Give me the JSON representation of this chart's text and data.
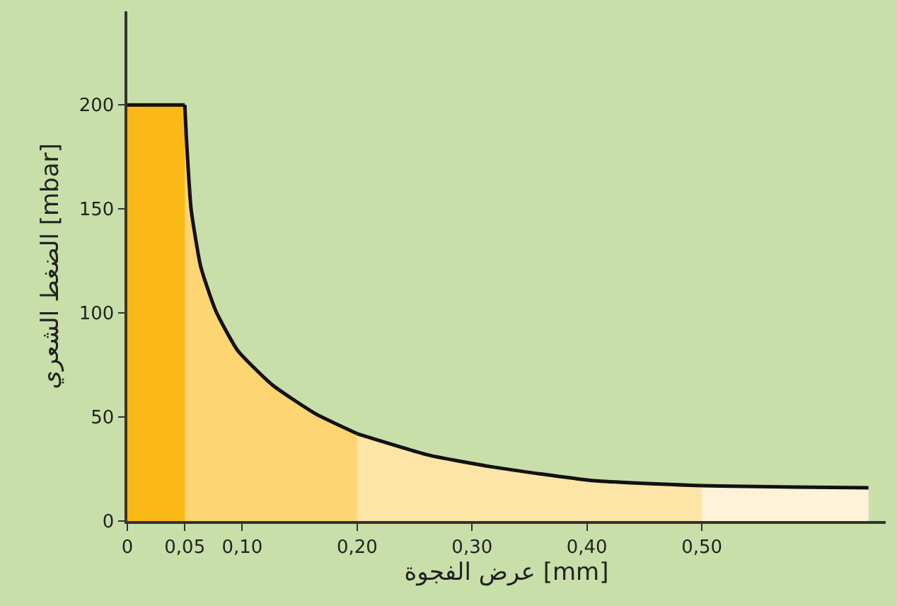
{
  "chart_data": {
    "type": "area",
    "xlabel": "عرض الفجوة [mm]",
    "ylabel": "الضغط الشعري [mbar]",
    "xlim": [
      0,
      0.66
    ],
    "ylim": [
      0,
      245
    ],
    "xticks": [
      0,
      {
        "value": 0.05,
        "label": "0,05"
      },
      {
        "value": 0.1,
        "label": "0,10"
      },
      {
        "value": 0.2,
        "label": "0,20"
      },
      {
        "value": 0.3,
        "label": "0,30"
      },
      {
        "value": 0.4,
        "label": "0,40"
      },
      {
        "value": 0.5,
        "label": "0,50"
      }
    ],
    "yticks": [
      0,
      50,
      100,
      150,
      200
    ],
    "grid": false,
    "series": [
      {
        "color": "#fbb917",
        "x": [
          0,
          0.05
        ],
        "values": [
          200,
          200
        ]
      },
      {
        "color": "#fdd673",
        "x": [
          0.05,
          0.0513,
          0.0555,
          0.064,
          0.077,
          0.096,
          0.126,
          0.164,
          0.2
        ],
        "values": [
          200,
          185,
          150,
          122,
          101,
          82,
          65.5,
          51.5,
          42
        ]
      },
      {
        "color": "#fde5a8",
        "x": [
          0.2,
          0.263,
          0.318,
          0.404,
          0.5
        ],
        "values": [
          42,
          31.6,
          26,
          19.5,
          17
        ]
      },
      {
        "color": "#fef3d9",
        "x": [
          0.5,
          0.58,
          0.645
        ],
        "values": [
          17,
          16.3,
          16
        ]
      }
    ]
  }
}
